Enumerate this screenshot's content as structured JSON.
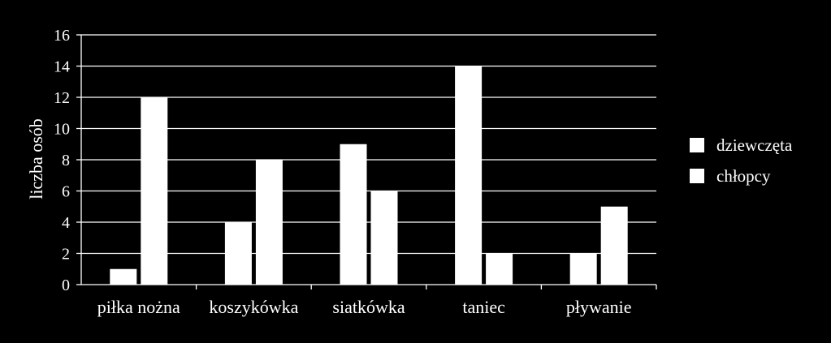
{
  "chart_data": {
    "type": "bar",
    "categories": [
      "piłka nożna",
      "koszykówka",
      "siatkówka",
      "taniec",
      "pływanie"
    ],
    "series": [
      {
        "name": "dziewczęta",
        "values": [
          1,
          4,
          9,
          14,
          2
        ],
        "color": "#ffffff"
      },
      {
        "name": "chłopcy",
        "values": [
          12,
          8,
          6,
          2,
          5
        ],
        "color": "#ffffff"
      }
    ],
    "title": "",
    "xlabel": "",
    "ylabel": "liczba osób",
    "ylim": [
      0,
      16
    ],
    "yticks": [
      "0",
      "2",
      "4",
      "6",
      "8",
      "10",
      "12",
      "14",
      "16"
    ],
    "grid": true,
    "legend_position": "right",
    "background": "#000000",
    "foreground": "#ffffff"
  }
}
